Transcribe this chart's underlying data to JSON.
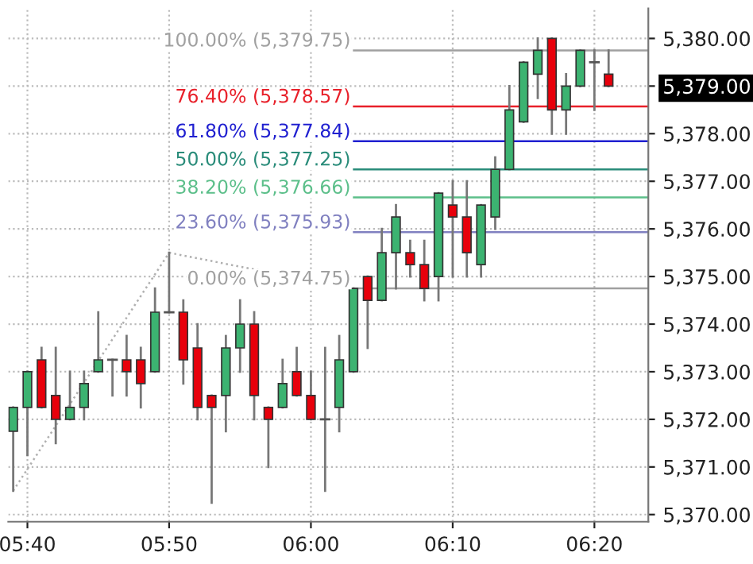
{
  "chart_data": {
    "type": "candlestick",
    "x": [
      5.65,
      5.6667,
      5.6833,
      5.7,
      5.7167,
      5.7333,
      5.75,
      5.7667,
      5.7833,
      5.8,
      5.8167,
      5.8333,
      5.85,
      5.8667,
      5.8833,
      5.9,
      5.9167,
      5.9333,
      5.95,
      5.9667,
      5.9833,
      6.0,
      6.0167,
      6.0333,
      6.05,
      6.0667,
      6.0833,
      6.1,
      6.1167,
      6.1333,
      6.15,
      6.1667,
      6.1833,
      6.2,
      6.2167,
      6.2333,
      6.25,
      6.2667,
      6.2833,
      6.3,
      6.3167,
      6.3333,
      6.35
    ],
    "ohlc": [
      [
        5371.75,
        5372.25,
        5370.5,
        5372.25
      ],
      [
        5372.25,
        5373.0,
        5371.25,
        5373.0
      ],
      [
        5373.25,
        5373.5,
        5372.25,
        5372.25
      ],
      [
        5372.5,
        5373.5,
        5371.5,
        5372.0
      ],
      [
        5372.0,
        5373.0,
        5372.0,
        5372.25
      ],
      [
        5372.25,
        5373.0,
        5372.0,
        5372.75
      ],
      [
        5373.0,
        5374.25,
        5373.0,
        5373.25
      ],
      [
        5373.25,
        5373.25,
        5372.5,
        5373.25
      ],
      [
        5373.25,
        5373.75,
        5372.5,
        5373.0
      ],
      [
        5373.25,
        5373.5,
        5372.25,
        5372.75
      ],
      [
        5373.0,
        5374.75,
        5373.0,
        5374.25
      ],
      [
        5374.25,
        5375.5,
        5374.25,
        5374.25
      ],
      [
        5374.25,
        5374.5,
        5372.75,
        5373.25
      ],
      [
        5373.5,
        5374.0,
        5372.0,
        5372.25
      ],
      [
        5372.5,
        5372.5,
        5370.25,
        5372.25
      ],
      [
        5372.5,
        5373.75,
        5371.75,
        5373.5
      ],
      [
        5373.5,
        5374.5,
        5373.0,
        5374.0
      ],
      [
        5374.0,
        5374.25,
        5372.0,
        5372.5
      ],
      [
        5372.25,
        5372.25,
        5371.0,
        5372.0
      ],
      [
        5372.25,
        5373.25,
        5372.25,
        5372.75
      ],
      [
        5373.0,
        5373.5,
        5372.5,
        5372.5
      ],
      [
        5372.5,
        5373.0,
        5372.0,
        5372.0
      ],
      [
        5372.0,
        5373.5,
        5370.5,
        5372.0
      ],
      [
        5372.25,
        5373.75,
        5371.75,
        5373.25
      ],
      [
        5373.0,
        5374.75,
        5373.0,
        5374.75
      ],
      [
        5375.0,
        5375.0,
        5373.5,
        5374.5
      ],
      [
        5374.5,
        5376.0,
        5374.5,
        5375.5
      ],
      [
        5375.5,
        5376.5,
        5374.75,
        5376.25
      ],
      [
        5375.5,
        5375.75,
        5375.0,
        5375.25
      ],
      [
        5375.25,
        5375.75,
        5374.5,
        5374.75
      ],
      [
        5375.0,
        5376.75,
        5374.5,
        5376.75
      ],
      [
        5376.5,
        5377.0,
        5375.0,
        5376.25
      ],
      [
        5376.25,
        5377.0,
        5375.0,
        5375.5
      ],
      [
        5375.25,
        5376.5,
        5375.0,
        5376.5
      ],
      [
        5376.25,
        5377.5,
        5376.0,
        5377.25
      ],
      [
        5377.25,
        5379.0,
        5377.25,
        5378.5
      ],
      [
        5378.25,
        5379.5,
        5378.25,
        5379.5
      ],
      [
        5379.25,
        5380.0,
        5378.75,
        5379.75
      ],
      [
        5380.0,
        5380.0,
        5378.0,
        5378.5
      ],
      [
        5378.5,
        5379.25,
        5378.0,
        5379.0
      ],
      [
        5379.0,
        5379.75,
        5379.0,
        5379.75
      ],
      [
        5379.5,
        5379.75,
        5378.5,
        5379.5
      ],
      [
        5379.25,
        5379.75,
        5379.0,
        5379.0
      ]
    ],
    "colors": [
      "#3cb371",
      "#3cb371",
      "#e8000b",
      "#e8000b",
      "#3cb371",
      "#3cb371",
      "#3cb371",
      "#555555",
      "#e8000b",
      "#e8000b",
      "#3cb371",
      "#555555",
      "#e8000b",
      "#e8000b",
      "#e8000b",
      "#3cb371",
      "#3cb371",
      "#e8000b",
      "#e8000b",
      "#3cb371",
      "#e8000b",
      "#e8000b",
      "#555555",
      "#3cb371",
      "#3cb371",
      "#e8000b",
      "#3cb371",
      "#3cb371",
      "#e8000b",
      "#e8000b",
      "#3cb371",
      "#e8000b",
      "#e8000b",
      "#3cb371",
      "#3cb371",
      "#3cb371",
      "#3cb371",
      "#3cb371",
      "#e8000b",
      "#3cb371",
      "#3cb371",
      "#555555",
      "#e8000b"
    ],
    "series": [
      {
        "type": "line",
        "color": "#b0b0b0",
        "x": [
          5.65,
          5.8333
        ],
        "values": [
          5370.5,
          5375.5
        ]
      },
      {
        "type": "line",
        "color": "#b0b0b0",
        "x": [
          5.8333,
          6.0467
        ],
        "values": [
          5375.5,
          5374.75
        ]
      }
    ],
    "line_style": "dotted",
    "ref_lines": [
      {
        "axis": "y",
        "value": 5379.75,
        "label": "100.00% (5,379.75)",
        "color": "#a0a0a0"
      },
      {
        "axis": "y",
        "value": 5378.57,
        "label": "76.40% (5,378.57)",
        "color": "#e8202a"
      },
      {
        "axis": "y",
        "value": 5377.84,
        "label": "61.80% (5,377.84)",
        "color": "#2020d0"
      },
      {
        "axis": "y",
        "value": 5377.25,
        "label": "50.00% (5,377.25)",
        "color": "#2a8c7a"
      },
      {
        "axis": "y",
        "value": 5376.66,
        "label": "38.20% (5,376.66)",
        "color": "#5cbf8a"
      },
      {
        "axis": "y",
        "value": 5375.93,
        "label": "23.60% (5,375.93)",
        "color": "#8080c0"
      },
      {
        "axis": "y",
        "value": 5374.75,
        "label": "0.00% (5,374.75)",
        "color": "#a0a0a0"
      }
    ],
    "xlim": [
      5.6442,
      6.3967
    ],
    "xticks": [
      {
        "value": 5.6667,
        "label": "05:40"
      },
      {
        "value": 5.8333,
        "label": "05:50"
      },
      {
        "value": 6.0,
        "label": "06:00"
      },
      {
        "value": 6.1667,
        "label": "06:10"
      },
      {
        "value": 6.3333,
        "label": "06:20"
      }
    ],
    "ylim": [
      5369.85,
      5380.63
    ],
    "yticks": [
      {
        "value": 5370,
        "label": "5,370.00"
      },
      {
        "value": 5371,
        "label": "5,371.00"
      },
      {
        "value": 5372,
        "label": "5,372.00"
      },
      {
        "value": 5373,
        "label": "5,373.00"
      },
      {
        "value": 5374,
        "label": "5,374.00"
      },
      {
        "value": 5375,
        "label": "5,375.00"
      },
      {
        "value": 5376,
        "label": "5,376.00"
      },
      {
        "value": 5377,
        "label": "5,377.00"
      },
      {
        "value": 5378,
        "label": "5,378.00"
      },
      {
        "value": 5379,
        "label": "5,379.00"
      },
      {
        "value": 5380,
        "label": "5,380.00"
      }
    ],
    "grid": true
  }
}
